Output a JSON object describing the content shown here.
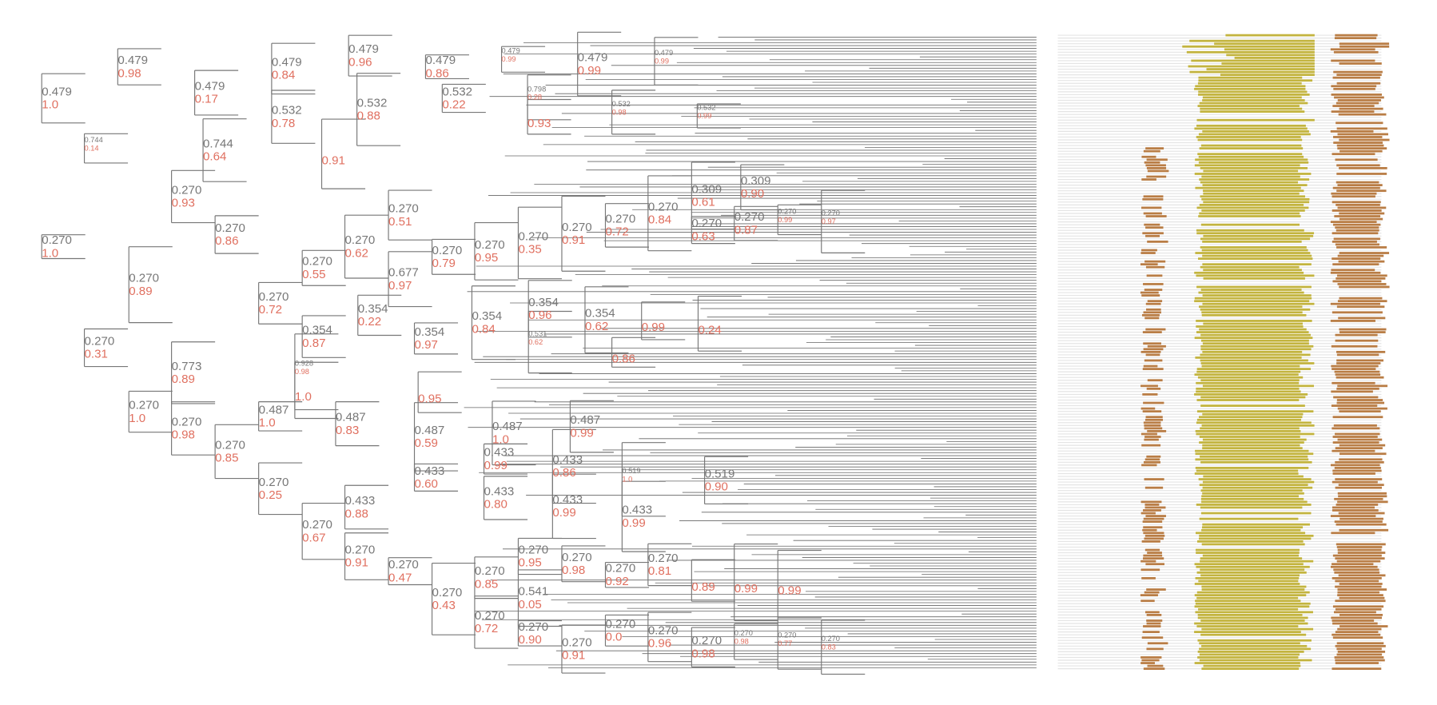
{
  "nodes": [
    {
      "length": "0.479",
      "support": "1.0"
    },
    {
      "length": "0.479",
      "support": "0.98"
    },
    {
      "length": "0.479",
      "support": "0.17"
    },
    {
      "length": "0.479",
      "support": "0.84"
    },
    {
      "length": "0.479",
      "support": "0.96"
    },
    {
      "length": "0.479",
      "support": "0.86"
    },
    {
      "length": "0.479",
      "support": "0.99"
    },
    {
      "length": "0.479",
      "support": "0.99"
    },
    {
      "length": "0.479",
      "support": "0.99"
    },
    {
      "length": "0.532",
      "support": "0.78"
    },
    {
      "length": "0.532",
      "support": "0.88"
    },
    {
      "length": "0.532",
      "support": "0.22"
    },
    {
      "length": "0.798",
      "support": "0.28"
    },
    {
      "support": "0.93"
    },
    {
      "length": "0.532",
      "support": "0.98"
    },
    {
      "length": "0.532",
      "support": "0.99"
    },
    {
      "length": "0.744",
      "support": "0.14"
    },
    {
      "length": "0.744",
      "support": "0.64"
    },
    {
      "support": "0.91"
    },
    {
      "length": "0.270",
      "support": "1.0"
    },
    {
      "length": "0.270",
      "support": "0.93"
    },
    {
      "length": "0.270",
      "support": "0.86"
    },
    {
      "length": "0.270",
      "support": "0.72"
    },
    {
      "length": "0.270",
      "support": "0.55"
    },
    {
      "length": "0.270",
      "support": "0.62"
    },
    {
      "length": "0.270",
      "support": "0.51"
    },
    {
      "length": "0.270",
      "support": "0.79"
    },
    {
      "length": "0.270",
      "support": "0.95"
    },
    {
      "length": "0.270",
      "support": "0.35"
    },
    {
      "length": "0.270",
      "support": "0.91"
    },
    {
      "length": "0.270",
      "support": "0.72"
    },
    {
      "length": "0.270",
      "support": "0.84"
    },
    {
      "length": "0.309",
      "support": "0.61"
    },
    {
      "length": "0.309",
      "support": "0.90"
    },
    {
      "length": "0.270",
      "support": "0.63"
    },
    {
      "length": "0.270",
      "support": "0.87"
    },
    {
      "length": "0.270",
      "support": "0.99"
    },
    {
      "length": "0.270",
      "support": "0.97"
    },
    {
      "length": "0.677",
      "support": "0.97"
    },
    {
      "length": "0.270",
      "support": "0.89"
    },
    {
      "length": "0.270",
      "support": "0.31"
    },
    {
      "length": "0.354",
      "support": "0.87"
    },
    {
      "length": "0.354",
      "support": "0.22"
    },
    {
      "length": "0.354",
      "support": "0.97"
    },
    {
      "length": "0.354",
      "support": "0.84"
    },
    {
      "length": "0.354",
      "support": "0.96"
    },
    {
      "length": "0.354",
      "support": "0.62"
    },
    {
      "length": "0.531",
      "support": "0.62"
    },
    {
      "support": "0.99"
    },
    {
      "support": "0.24"
    },
    {
      "support": "0.86"
    },
    {
      "length": "0.773",
      "support": "0.89"
    },
    {
      "length": "0.928",
      "support": "0.98"
    },
    {
      "support": "1.0"
    },
    {
      "support": "0.95"
    },
    {
      "length": "0.270",
      "support": "1.0"
    },
    {
      "length": "0.270",
      "support": "0.98"
    },
    {
      "length": "0.270",
      "support": "0.85"
    },
    {
      "length": "0.487",
      "support": "1.0"
    },
    {
      "length": "0.487",
      "support": "0.83"
    },
    {
      "length": "0.487",
      "support": "0.59"
    },
    {
      "length": "0.487",
      "support": "1.0"
    },
    {
      "length": "0.487",
      "support": "0.99"
    },
    {
      "length": "0.270",
      "support": "0.25"
    },
    {
      "length": "0.270",
      "support": "0.67"
    },
    {
      "length": "0.433",
      "support": "0.88"
    },
    {
      "length": "0.433",
      "support": "0.60"
    },
    {
      "length": "0.433",
      "support": "0.99"
    },
    {
      "length": "0.433",
      "support": "0.80"
    },
    {
      "length": "0.433",
      "support": "0.86"
    },
    {
      "length": "0.433",
      "support": "0.99"
    },
    {
      "length": "0.519",
      "support": "1.0"
    },
    {
      "length": "0.519",
      "support": "0.90"
    },
    {
      "length": "0.433",
      "support": "0.99"
    },
    {
      "length": "0.270",
      "support": "0.91"
    },
    {
      "length": "0.270",
      "support": "0.47"
    },
    {
      "length": "0.270",
      "support": "0.43"
    },
    {
      "length": "0.270",
      "support": "0.85"
    },
    {
      "length": "0.270",
      "support": "0.95"
    },
    {
      "length": "0.270",
      "support": "0.98"
    },
    {
      "length": "0.270",
      "support": "0.92"
    },
    {
      "length": "0.270",
      "support": "0.81"
    },
    {
      "support": "0.89"
    },
    {
      "support": "0.99"
    },
    {
      "support": "0.99"
    },
    {
      "length": "0.541",
      "support": "0.05"
    },
    {
      "length": "0.270",
      "support": "0.72"
    },
    {
      "length": "0.270",
      "support": "0.90"
    },
    {
      "length": "0.270",
      "support": "0.91"
    },
    {
      "length": "0.270",
      "support": "0.0"
    },
    {
      "length": "0.270",
      "support": "0.96"
    },
    {
      "length": "0.270",
      "support": "0.98"
    },
    {
      "length": "0.270",
      "support": "0.98"
    },
    {
      "length": "0.270",
      "support": "0.77"
    },
    {
      "length": "0.270",
      "support": "0.83"
    }
  ]
}
